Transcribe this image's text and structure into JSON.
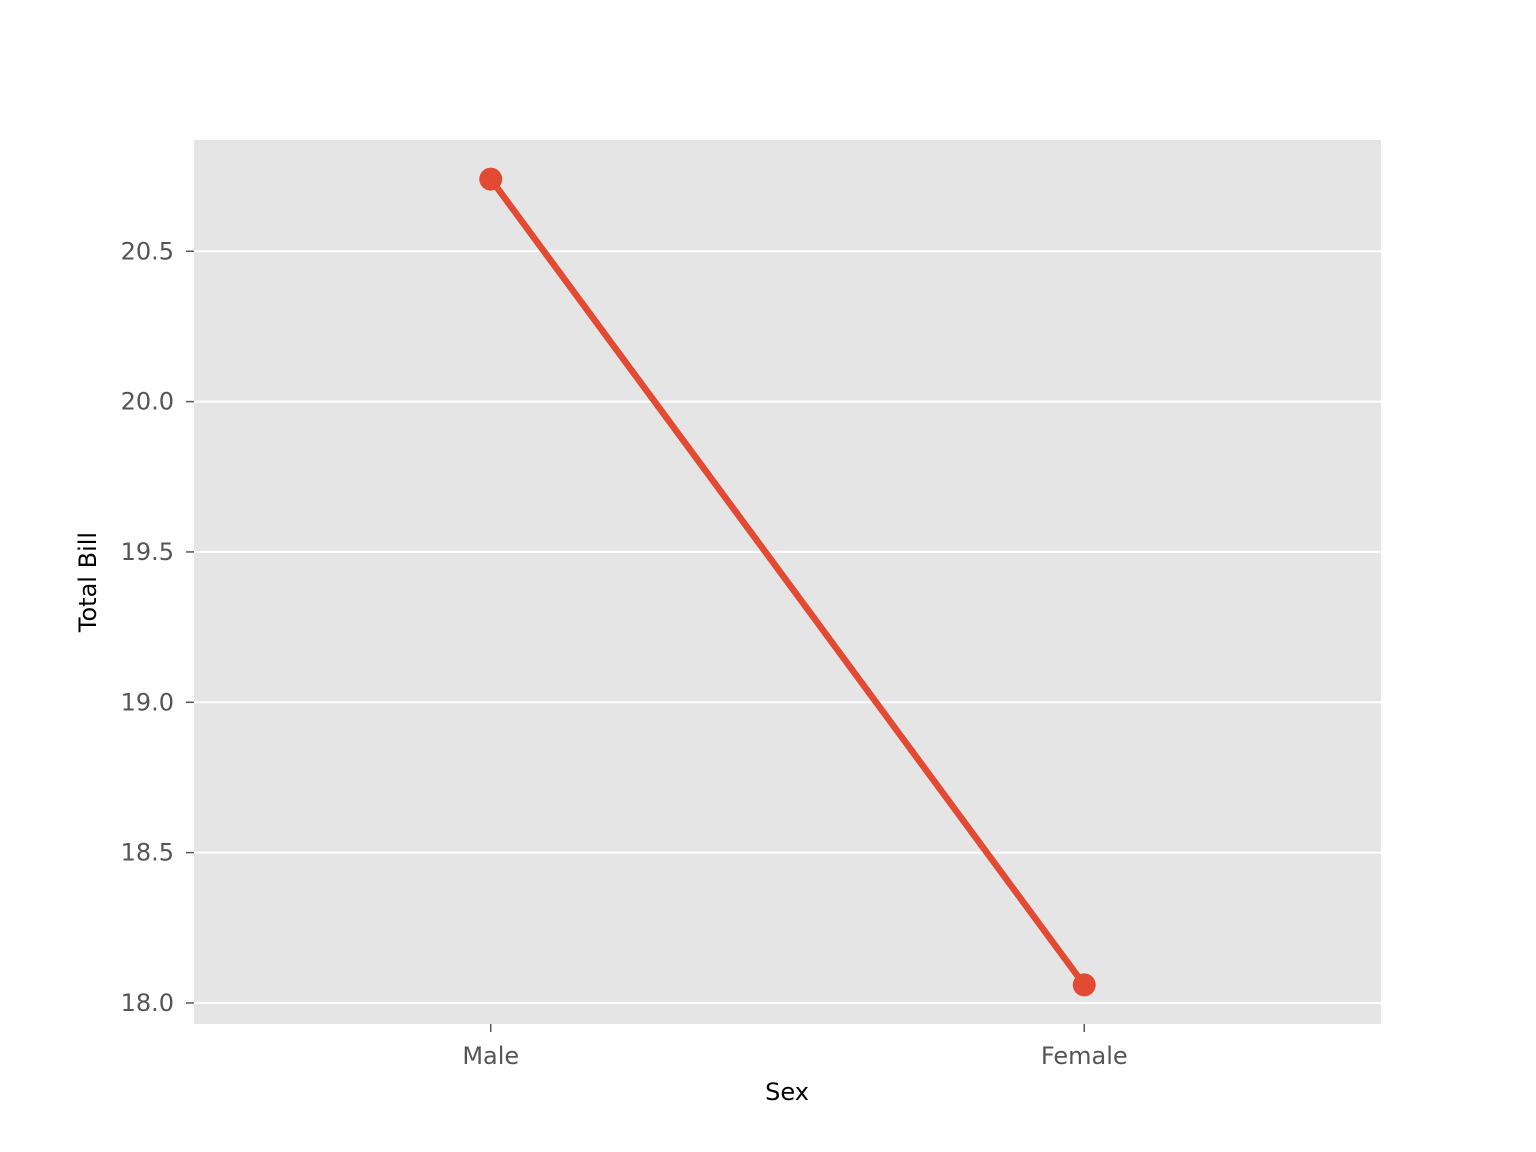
{
  "chart_data": {
    "type": "line",
    "categories": [
      "Male",
      "Female"
    ],
    "series": [
      {
        "values": [
          20.74,
          18.06
        ]
      }
    ],
    "xlabel": "Sex",
    "ylabel": "Total Bill",
    "ylim": [
      17.93,
      20.87
    ],
    "yticks": [
      18.0,
      18.5,
      19.0,
      19.5,
      20.0,
      20.5
    ],
    "ytick_labels": [
      "18.0",
      "18.5",
      "19.0",
      "19.5",
      "20.0",
      "20.5"
    ],
    "grid": "horizontal",
    "legend": "none",
    "colors": {
      "plot_background": "#e5e5e5",
      "grid": "#ffffff",
      "series": "#e24a33",
      "tick_label": "#555555",
      "axis_label": "#000000"
    }
  }
}
